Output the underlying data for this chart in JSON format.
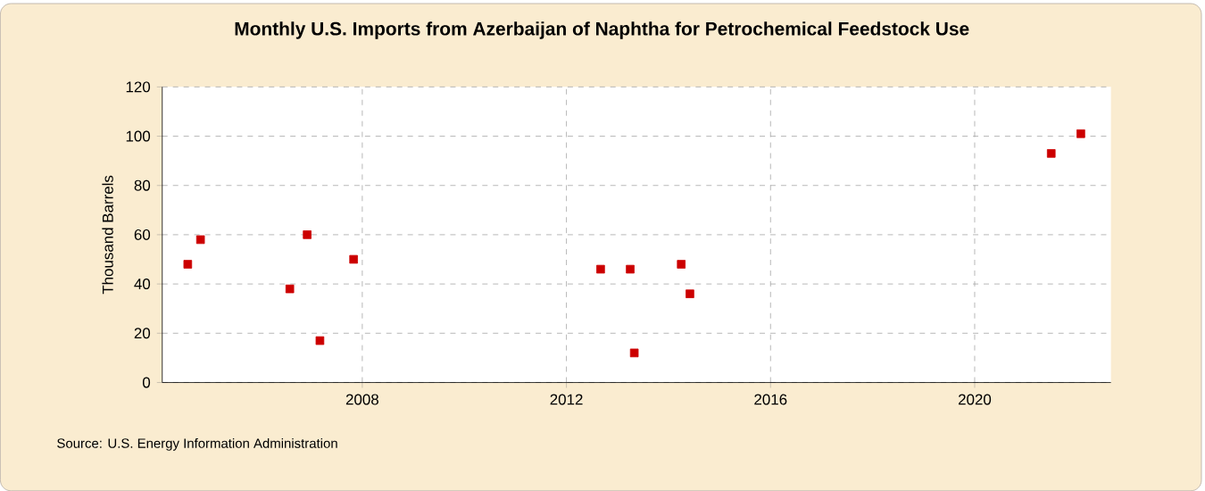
{
  "chart_data": {
    "type": "scatter",
    "title": "Monthly U.S. Imports from Azerbaijan of Naphtha for Petrochemical Feedstock Use",
    "ylabel": "Thousand Barrels",
    "x": [
      "2004-08",
      "2004-11",
      "2006-08",
      "2006-12",
      "2007-03",
      "2007-11",
      "2012-09",
      "2013-04",
      "2013-05",
      "2014-04",
      "2014-06",
      "2021-07",
      "2022-02"
    ],
    "values": [
      48,
      58,
      38,
      60,
      17,
      50,
      46,
      46,
      12,
      48,
      36,
      93,
      101
    ],
    "color": "#cc0000",
    "marker": "square",
    "xlim": [
      "2004-02",
      "2022-09"
    ],
    "xticks": [
      "2008",
      "2012",
      "2016",
      "2020"
    ],
    "ylim": [
      0,
      120
    ],
    "yticks": [
      0,
      20,
      40,
      60,
      80,
      100,
      120
    ],
    "grid": true,
    "annotations": [
      "Source: U.S. Energy Information Administration"
    ]
  }
}
